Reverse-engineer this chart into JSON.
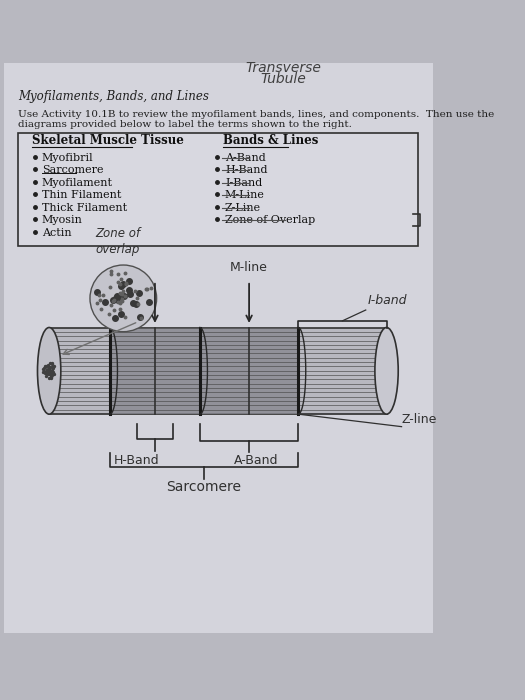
{
  "bg_color": "#b8b8c0",
  "paper_color": "#d4d4dc",
  "title_top": "Transverse",
  "title_top2": "Tubule",
  "section_title": "Myofilaments, Bands, and Lines",
  "body_text1": "Use Activity 10.1B to review the myofilament bands, lines, and components.  Then use the",
  "body_text2": "diagrams provided below to label the terms shown to the right.",
  "left_header": "Skeletal Muscle Tissue",
  "left_items": [
    "Myofibril",
    "Sarcomere",
    "Myofilament",
    "Thin Filament",
    "Thick Filament",
    "Myosin",
    "Actin"
  ],
  "right_header": "Bands & Lines",
  "right_items": [
    "A-Band",
    "H-Band",
    "I-Band",
    "M-Line",
    "Z-Line",
    "Zone of Overlap"
  ],
  "zone_of_overlap": "Zone of\noverlap",
  "m_line": "M-line",
  "i_band": "I-band",
  "z_line": "Z-line",
  "a_band": "A-Band",
  "h_band": "H-Band",
  "sarcomere": "Sarcomere"
}
